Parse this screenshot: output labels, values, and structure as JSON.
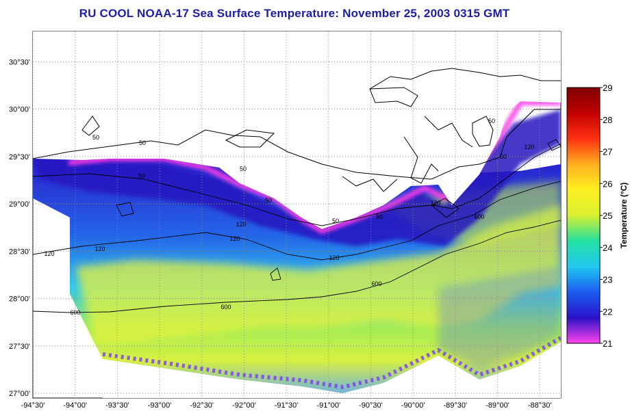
{
  "title": "RU COOL  NOAA-17  Sea Surface Temperature:  November 25, 2003 0315 GMT",
  "map": {
    "lon_range": [
      -94.5,
      -88.25
    ],
    "lat_range": [
      26.95,
      30.82
    ],
    "lon_ticks": [
      {
        "value": -94.5,
        "label": "-94°30'"
      },
      {
        "value": -94.0,
        "label": "-94°00'"
      },
      {
        "value": -93.5,
        "label": "-93°30'"
      },
      {
        "value": -93.0,
        "label": "-93°00'"
      },
      {
        "value": -92.5,
        "label": "-92°30'"
      },
      {
        "value": -92.0,
        "label": "-92°00'"
      },
      {
        "value": -91.5,
        "label": "-91°30'"
      },
      {
        "value": -91.0,
        "label": "-91°00'"
      },
      {
        "value": -90.5,
        "label": "-90°30'"
      },
      {
        "value": -90.0,
        "label": "-90°00'"
      },
      {
        "value": -89.5,
        "label": "-89°30'"
      },
      {
        "value": -89.0,
        "label": "-89°00'"
      },
      {
        "value": -88.5,
        "label": "-88°30'"
      }
    ],
    "lat_ticks": [
      {
        "value": 30.5,
        "label": "30°30'"
      },
      {
        "value": 30.0,
        "label": "30°00'"
      },
      {
        "value": 29.5,
        "label": "29°30'"
      },
      {
        "value": 29.0,
        "label": "29°00'"
      },
      {
        "value": 28.5,
        "label": "28°30'"
      },
      {
        "value": 28.0,
        "label": "28°00'"
      },
      {
        "value": 27.5,
        "label": "27°30'"
      },
      {
        "value": 27.0,
        "label": "27°00'"
      }
    ],
    "contour_labels": [
      "50",
      "50",
      "50",
      "50",
      "50",
      "50",
      "50",
      "50",
      "50",
      "120",
      "120",
      "120",
      "120",
      "120",
      "120",
      "120",
      "600",
      "600",
      "600",
      "600"
    ],
    "grid": "dotted",
    "land_color": "#ffffff"
  },
  "colorbar": {
    "label": "Temperature (°C)",
    "min": 21,
    "max": 29,
    "ticks": [
      "29",
      "28",
      "27",
      "26",
      "25",
      "24",
      "23",
      "22",
      "21"
    ],
    "colors": [
      "#ff44ee",
      "#2a12c8",
      "#1a5cf0",
      "#22c8f0",
      "#22e0a0",
      "#d8f030",
      "#fff020",
      "#ffb020",
      "#ff3010",
      "#c00000",
      "#800000"
    ]
  }
}
